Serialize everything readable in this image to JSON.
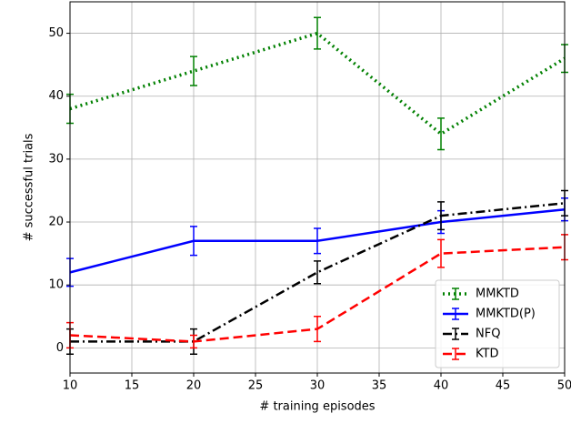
{
  "chart_data": {
    "type": "line",
    "x_label": "# training episodes",
    "y_label": "# successful trials",
    "x": [
      10,
      20,
      30,
      40,
      50
    ],
    "series": [
      {
        "name": "MMKTD",
        "color": "#008000",
        "linestyle": "dotted",
        "values": [
          38,
          44,
          50,
          34,
          46
        ],
        "errors": [
          2.3,
          2.3,
          2.5,
          2.5,
          2.2
        ]
      },
      {
        "name": "MMKTD(P)",
        "color": "#0000ff",
        "linestyle": "solid",
        "values": [
          12,
          17,
          17,
          20,
          22
        ],
        "errors": [
          2.2,
          2.3,
          2,
          1.8,
          1.8
        ]
      },
      {
        "name": "NFQ",
        "color": "#000000",
        "linestyle": "dashdot",
        "values": [
          1,
          1,
          12,
          21,
          23
        ],
        "errors": [
          2,
          2,
          1.8,
          2.2,
          2
        ]
      },
      {
        "name": "KTD",
        "color": "#ff0000",
        "linestyle": "dashed",
        "values": [
          2,
          1,
          3,
          15,
          16
        ],
        "errors": [
          2,
          1,
          2,
          2.2,
          2
        ]
      }
    ],
    "xlim": [
      10,
      50
    ],
    "xticks": [
      10,
      15,
      20,
      25,
      30,
      35,
      40,
      45,
      50
    ],
    "ylim": [
      -4,
      55
    ],
    "yticks": [
      0,
      10,
      20,
      30,
      40,
      50
    ],
    "grid": true,
    "legend": "lower right"
  }
}
